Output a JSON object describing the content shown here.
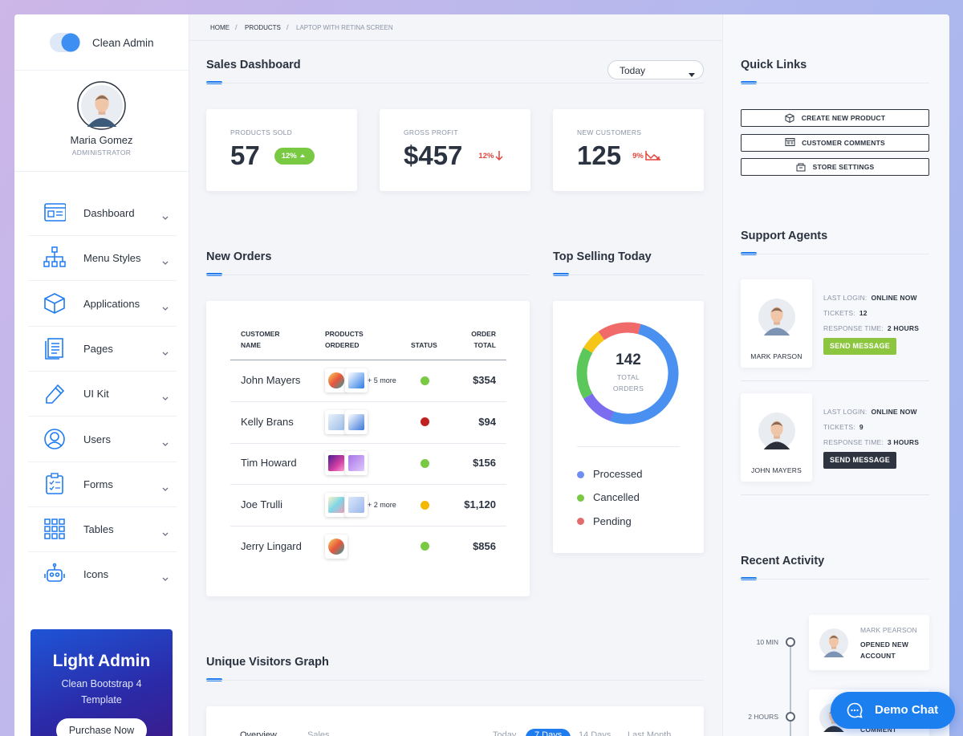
{
  "sidebar": {
    "brand": "Clean Admin",
    "user": {
      "name": "Maria Gomez",
      "role": "ADMINISTRATOR"
    },
    "menu": [
      "Dashboard",
      "Menu Styles",
      "Applications",
      "Pages",
      "UI Kit",
      "Users",
      "Forms",
      "Tables",
      "Icons"
    ],
    "promo": {
      "title": "Light Admin",
      "text": "Clean Bootstrap 4 Template",
      "button": "Purchase Now"
    }
  },
  "breadcrumb": [
    "HOME",
    "PRODUCTS",
    "LAPTOP WITH RETINA SCREEN"
  ],
  "sales": {
    "title": "Sales Dashboard",
    "period": "Today",
    "stats": [
      {
        "label": "PRODUCTS SOLD",
        "value": "57",
        "change": "12%"
      },
      {
        "label": "GROSS PROFIT",
        "value": "$457",
        "change": "12%"
      },
      {
        "label": "NEW CUSTOMERS",
        "value": "125",
        "change": "9%"
      }
    ]
  },
  "orders": {
    "title": "New Orders",
    "columns": [
      "CUSTOMER NAME",
      "PRODUCTS ORDERED",
      "STATUS",
      "ORDER TOTAL"
    ],
    "rows": [
      {
        "name": "John Mayers",
        "more": "+ 5 more",
        "status_color": "#7ac943",
        "total": "$354"
      },
      {
        "name": "Kelly Brans",
        "status_color": "#c0201f",
        "total": "$94"
      },
      {
        "name": "Tim Howard",
        "status_color": "#7ac943",
        "total": "$156"
      },
      {
        "name": "Joe Trulli",
        "more": "+ 2 more",
        "status_color": "#f5b800",
        "total": "$1,120"
      },
      {
        "name": "Jerry Lingard",
        "status_color": "#7ac943",
        "total": "$856"
      }
    ]
  },
  "top_selling": {
    "title": "Top Selling Today",
    "total": "142",
    "total_label": "TOTAL ORDERS",
    "legend": [
      {
        "name": "Processed",
        "color": "#6f8ef2"
      },
      {
        "name": "Cancelled",
        "color": "#7ac943"
      },
      {
        "name": "Pending",
        "color": "#e46b6b"
      }
    ]
  },
  "visitors": {
    "title": "Unique Visitors Graph",
    "tabs": [
      "Overview",
      "Sales"
    ],
    "ranges": [
      "Today",
      "7 Days",
      "14 Days",
      "Last Month"
    ]
  },
  "quick_links": {
    "title": "Quick Links",
    "links": [
      "CREATE NEW PRODUCT",
      "CUSTOMER COMMENTS",
      "STORE SETTINGS"
    ]
  },
  "agents": {
    "title": "Support Agents",
    "items": [
      {
        "name": "MARK PARSON",
        "last_login_label": "LAST LOGIN:",
        "last_login": "ONLINE NOW",
        "tickets_label": "TICKETS:",
        "tickets": "12",
        "response_label": "RESPONSE TIME:",
        "response": "2 HOURS",
        "button": "SEND MESSAGE",
        "button_color": "#8cc63f"
      },
      {
        "name": "JOHN MAYERS",
        "last_login_label": "LAST LOGIN:",
        "last_login": "ONLINE NOW",
        "tickets_label": "TICKETS:",
        "tickets": "9",
        "response_label": "RESPONSE TIME:",
        "response": "3 HOURS",
        "button": "SEND MESSAGE",
        "button_color": "#2e3540"
      }
    ]
  },
  "activity": {
    "title": "Recent Activity",
    "items": [
      {
        "time": "10 MIN",
        "name": "MARK PEARSON",
        "text": "OPENED NEW ACCOUNT"
      },
      {
        "time": "2 HOURS",
        "text": "COMMENT"
      }
    ]
  },
  "chat": "Demo Chat"
}
